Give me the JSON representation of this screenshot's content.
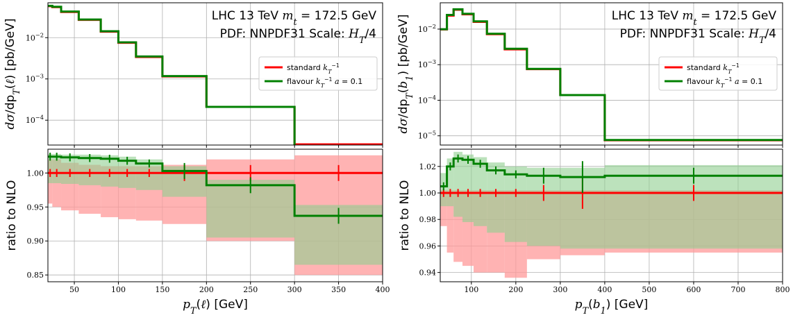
{
  "colors": {
    "standard": "#ff0000",
    "flavour": "#008000",
    "standard_band": "#ff9a9a",
    "flavour_band": "#8fcf8f"
  },
  "chart_data": [
    {
      "type": "line",
      "xlabel": "p_T(ℓ) [GeV]",
      "xlim": [
        20,
        400
      ],
      "xticks": [
        "50",
        "100",
        "150",
        "200",
        "250",
        "300",
        "350",
        "400"
      ],
      "annotations": [
        "LHC 13 TeV m_t = 172.5 GeV",
        "PDF: NNPDF31 Scale: H_T/4"
      ],
      "legend_position": "center-right",
      "legend": [
        "standard k_T^-1",
        "flavour k_T^-1 a = 0.1"
      ],
      "edges": [
        20,
        25,
        35,
        55,
        80,
        100,
        120,
        150,
        200,
        300,
        400
      ],
      "top": {
        "ylabel": "dσ/dp_T(ℓ) [pb/GeV]",
        "scale": "log",
        "ylim": [
          2.5e-05,
          0.07
        ],
        "yticks": [
          "10^-2",
          "10^-3",
          "10^-4"
        ],
        "yticks_values": [
          0.01,
          0.001,
          0.0001
        ],
        "series": [
          {
            "name": "standard k_T^-1",
            "values": [
              0.058,
              0.055,
              0.042,
              0.027,
              0.014,
              0.0075,
              0.0034,
              0.00115,
              0.00021,
              2.6e-05
            ]
          },
          {
            "name": "flavour k_T^-1 a = 0.1",
            "values": [
              0.059,
              0.056,
              0.043,
              0.0275,
              0.0143,
              0.0077,
              0.0035,
              0.00117,
              0.00021,
              2.4e-05
            ]
          }
        ]
      },
      "bottom": {
        "ylabel": "ratio to NLO",
        "ylim": [
          0.84,
          1.035
        ],
        "yticks": [
          "0.85",
          "0.90",
          "0.95",
          "1.00"
        ],
        "yticks_values": [
          0.85,
          0.9,
          0.95,
          1.0
        ],
        "series": [
          {
            "name": "standard k_T^-1",
            "values": [
              1.0,
              1.0,
              1.0,
              1.0,
              1.0,
              1.0,
              1.0,
              1.0,
              1.0,
              1.0
            ],
            "band_lo": [
              0.955,
              0.95,
              0.945,
              0.94,
              0.935,
              0.932,
              0.93,
              0.925,
              0.9,
              0.85
            ],
            "band_hi": [
              1.02,
              1.02,
              1.015,
              1.012,
              1.01,
              1.01,
              1.01,
              1.012,
              1.02,
              1.026
            ]
          },
          {
            "name": "flavour k_T^-1 a = 0.1",
            "values": [
              1.024,
              1.024,
              1.023,
              1.022,
              1.021,
              1.018,
              1.014,
              1.003,
              0.982,
              0.937
            ],
            "band_lo": [
              0.985,
              0.985,
              0.984,
              0.982,
              0.98,
              0.978,
              0.975,
              0.965,
              0.905,
              0.865
            ],
            "band_hi": [
              1.028,
              1.028,
              1.027,
              1.027,
              1.026,
              1.024,
              1.02,
              1.01,
              0.99,
              0.953
            ]
          }
        ]
      }
    },
    {
      "type": "line",
      "xlabel": "p_T(b_1) [GeV]",
      "xlim": [
        30,
        800
      ],
      "xticks": [
        "100",
        "200",
        "300",
        "400",
        "500",
        "600",
        "700",
        "800"
      ],
      "annotations": [
        "LHC 13 TeV m_t = 172.5 GeV",
        "PDF: NNPDF31 Scale: H_T/4"
      ],
      "legend_position": "center-right",
      "legend": [
        "standard k_T^-1",
        "flavour k_T^-1 a = 0.1"
      ],
      "edges": [
        30,
        45,
        60,
        80,
        105,
        135,
        175,
        225,
        300,
        400,
        800
      ],
      "top": {
        "ylabel": "dσ/dp_T(b_1) [pb/GeV]",
        "scale": "log",
        "ylim": [
          5.5e-06,
          0.055
        ],
        "yticks": [
          "10^-2",
          "10^-3",
          "10^-4",
          "10^-5"
        ],
        "yticks_values": [
          0.01,
          0.001,
          0.0001,
          1e-05
        ],
        "series": [
          {
            "name": "standard k_T^-1",
            "values": [
              0.0098,
              0.024,
              0.035,
              0.026,
              0.016,
              0.0072,
              0.0027,
              0.00075,
              0.00014,
              7.5e-06
            ]
          },
          {
            "name": "flavour k_T^-1 a = 0.1",
            "values": [
              0.0099,
              0.025,
              0.036,
              0.027,
              0.0165,
              0.0074,
              0.0028,
              0.00076,
              0.00014,
              7.6e-06
            ]
          }
        ]
      },
      "bottom": {
        "ylabel": "ratio to NLO",
        "ylim": [
          0.933,
          1.033
        ],
        "yticks": [
          "0.94",
          "0.96",
          "0.98",
          "1.00",
          "1.02"
        ],
        "yticks_values": [
          0.94,
          0.96,
          0.98,
          1.0,
          1.02
        ],
        "series": [
          {
            "name": "standard k_T^-1",
            "values": [
              1.0,
              1.0,
              1.0,
              1.0,
              1.0,
              1.0,
              1.0,
              1.0,
              1.0,
              1.0
            ],
            "band_lo": [
              0.975,
              0.955,
              0.948,
              0.945,
              0.94,
              0.94,
              0.936,
              0.95,
              0.953,
              0.955
            ],
            "band_hi": [
              1.002,
              1.002,
              1.002,
              1.002,
              1.002,
              1.002,
              1.002,
              1.002,
              1.002,
              1.002
            ]
          },
          {
            "name": "flavour k_T^-1 a = 0.1",
            "values": [
              1.005,
              1.02,
              1.026,
              1.025,
              1.022,
              1.017,
              1.014,
              1.013,
              1.012,
              1.013
            ],
            "band_lo": [
              0.99,
              0.99,
              0.982,
              0.978,
              0.975,
              0.97,
              0.963,
              0.96,
              0.958,
              0.958
            ],
            "band_hi": [
              1.015,
              1.026,
              1.031,
              1.029,
              1.027,
              1.023,
              1.02,
              1.019,
              1.019,
              1.021
            ]
          }
        ]
      }
    }
  ]
}
